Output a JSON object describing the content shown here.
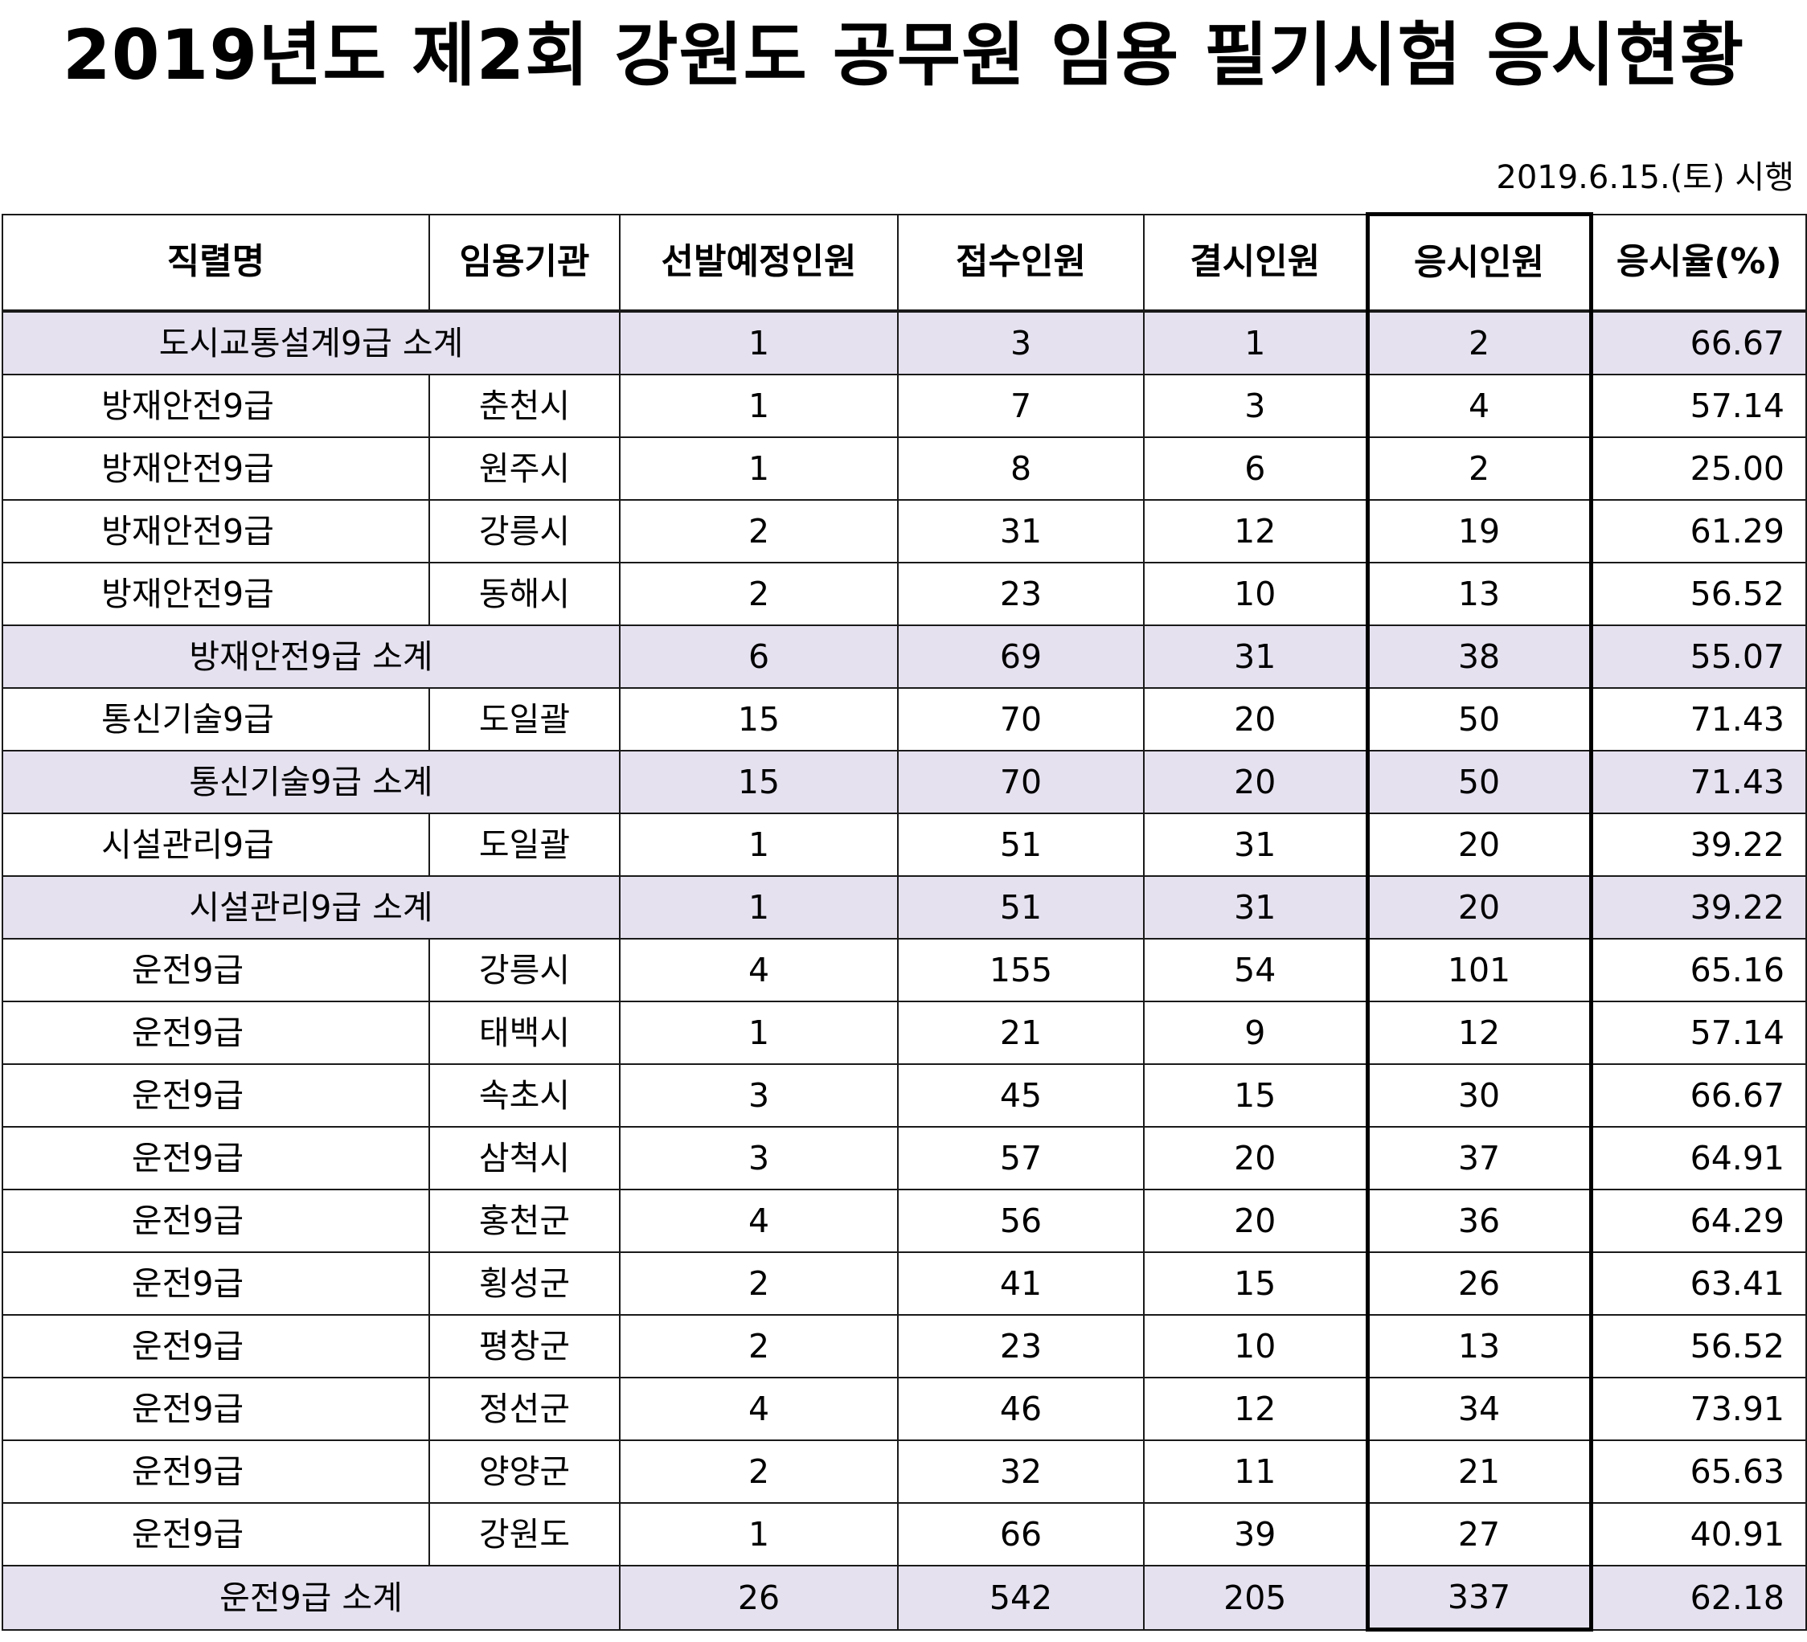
{
  "title": "2019년도 제2회 강원도 공무원 임용 필기시험 응시현황",
  "date": "2019.6.15.(토) 시행",
  "headers": [
    "직렬명",
    "임용기관",
    "선발예정인원",
    "접수인원",
    "결시인원",
    "응시인원",
    "응시율(%)"
  ],
  "rows": [
    {
      "type": "subtotal",
      "name": "도시교통설계9급 소계",
      "agency": "",
      "planned": "1",
      "applied": "3",
      "absent": "1",
      "attended": "2",
      "rate": "66.67"
    },
    {
      "type": "row",
      "name": "방재안전9급",
      "agency": "춘천시",
      "planned": "1",
      "applied": "7",
      "absent": "3",
      "attended": "4",
      "rate": "57.14"
    },
    {
      "type": "row",
      "name": "방재안전9급",
      "agency": "원주시",
      "planned": "1",
      "applied": "8",
      "absent": "6",
      "attended": "2",
      "rate": "25.00"
    },
    {
      "type": "row",
      "name": "방재안전9급",
      "agency": "강릉시",
      "planned": "2",
      "applied": "31",
      "absent": "12",
      "attended": "19",
      "rate": "61.29"
    },
    {
      "type": "row",
      "name": "방재안전9급",
      "agency": "동해시",
      "planned": "2",
      "applied": "23",
      "absent": "10",
      "attended": "13",
      "rate": "56.52"
    },
    {
      "type": "subtotal",
      "name": "방재안전9급 소계",
      "agency": "",
      "planned": "6",
      "applied": "69",
      "absent": "31",
      "attended": "38",
      "rate": "55.07"
    },
    {
      "type": "row",
      "name": "통신기술9급",
      "agency": "도일괄",
      "planned": "15",
      "applied": "70",
      "absent": "20",
      "attended": "50",
      "rate": "71.43"
    },
    {
      "type": "subtotal",
      "name": "통신기술9급 소계",
      "agency": "",
      "planned": "15",
      "applied": "70",
      "absent": "20",
      "attended": "50",
      "rate": "71.43"
    },
    {
      "type": "row",
      "name": "시설관리9급",
      "agency": "도일괄",
      "planned": "1",
      "applied": "51",
      "absent": "31",
      "attended": "20",
      "rate": "39.22"
    },
    {
      "type": "subtotal",
      "name": "시설관리9급 소계",
      "agency": "",
      "planned": "1",
      "applied": "51",
      "absent": "31",
      "attended": "20",
      "rate": "39.22"
    },
    {
      "type": "row",
      "name": "운전9급",
      "agency": "강릉시",
      "planned": "4",
      "applied": "155",
      "absent": "54",
      "attended": "101",
      "rate": "65.16"
    },
    {
      "type": "row",
      "name": "운전9급",
      "agency": "태백시",
      "planned": "1",
      "applied": "21",
      "absent": "9",
      "attended": "12",
      "rate": "57.14"
    },
    {
      "type": "row",
      "name": "운전9급",
      "agency": "속초시",
      "planned": "3",
      "applied": "45",
      "absent": "15",
      "attended": "30",
      "rate": "66.67"
    },
    {
      "type": "row",
      "name": "운전9급",
      "agency": "삼척시",
      "planned": "3",
      "applied": "57",
      "absent": "20",
      "attended": "37",
      "rate": "64.91"
    },
    {
      "type": "row",
      "name": "운전9급",
      "agency": "홍천군",
      "planned": "4",
      "applied": "56",
      "absent": "20",
      "attended": "36",
      "rate": "64.29"
    },
    {
      "type": "row",
      "name": "운전9급",
      "agency": "횡성군",
      "planned": "2",
      "applied": "41",
      "absent": "15",
      "attended": "26",
      "rate": "63.41"
    },
    {
      "type": "row",
      "name": "운전9급",
      "agency": "평창군",
      "planned": "2",
      "applied": "23",
      "absent": "10",
      "attended": "13",
      "rate": "56.52"
    },
    {
      "type": "row",
      "name": "운전9급",
      "agency": "정선군",
      "planned": "4",
      "applied": "46",
      "absent": "12",
      "attended": "34",
      "rate": "73.91"
    },
    {
      "type": "row",
      "name": "운전9급",
      "agency": "양양군",
      "planned": "2",
      "applied": "32",
      "absent": "11",
      "attended": "21",
      "rate": "65.63"
    },
    {
      "type": "row",
      "name": "운전9급",
      "agency": "강원도",
      "planned": "1",
      "applied": "66",
      "absent": "39",
      "attended": "27",
      "rate": "40.91"
    },
    {
      "type": "subtotal",
      "name": "운전9급 소계",
      "agency": "",
      "planned": "26",
      "applied": "542",
      "absent": "205",
      "attended": "337",
      "rate": "62.18"
    }
  ]
}
